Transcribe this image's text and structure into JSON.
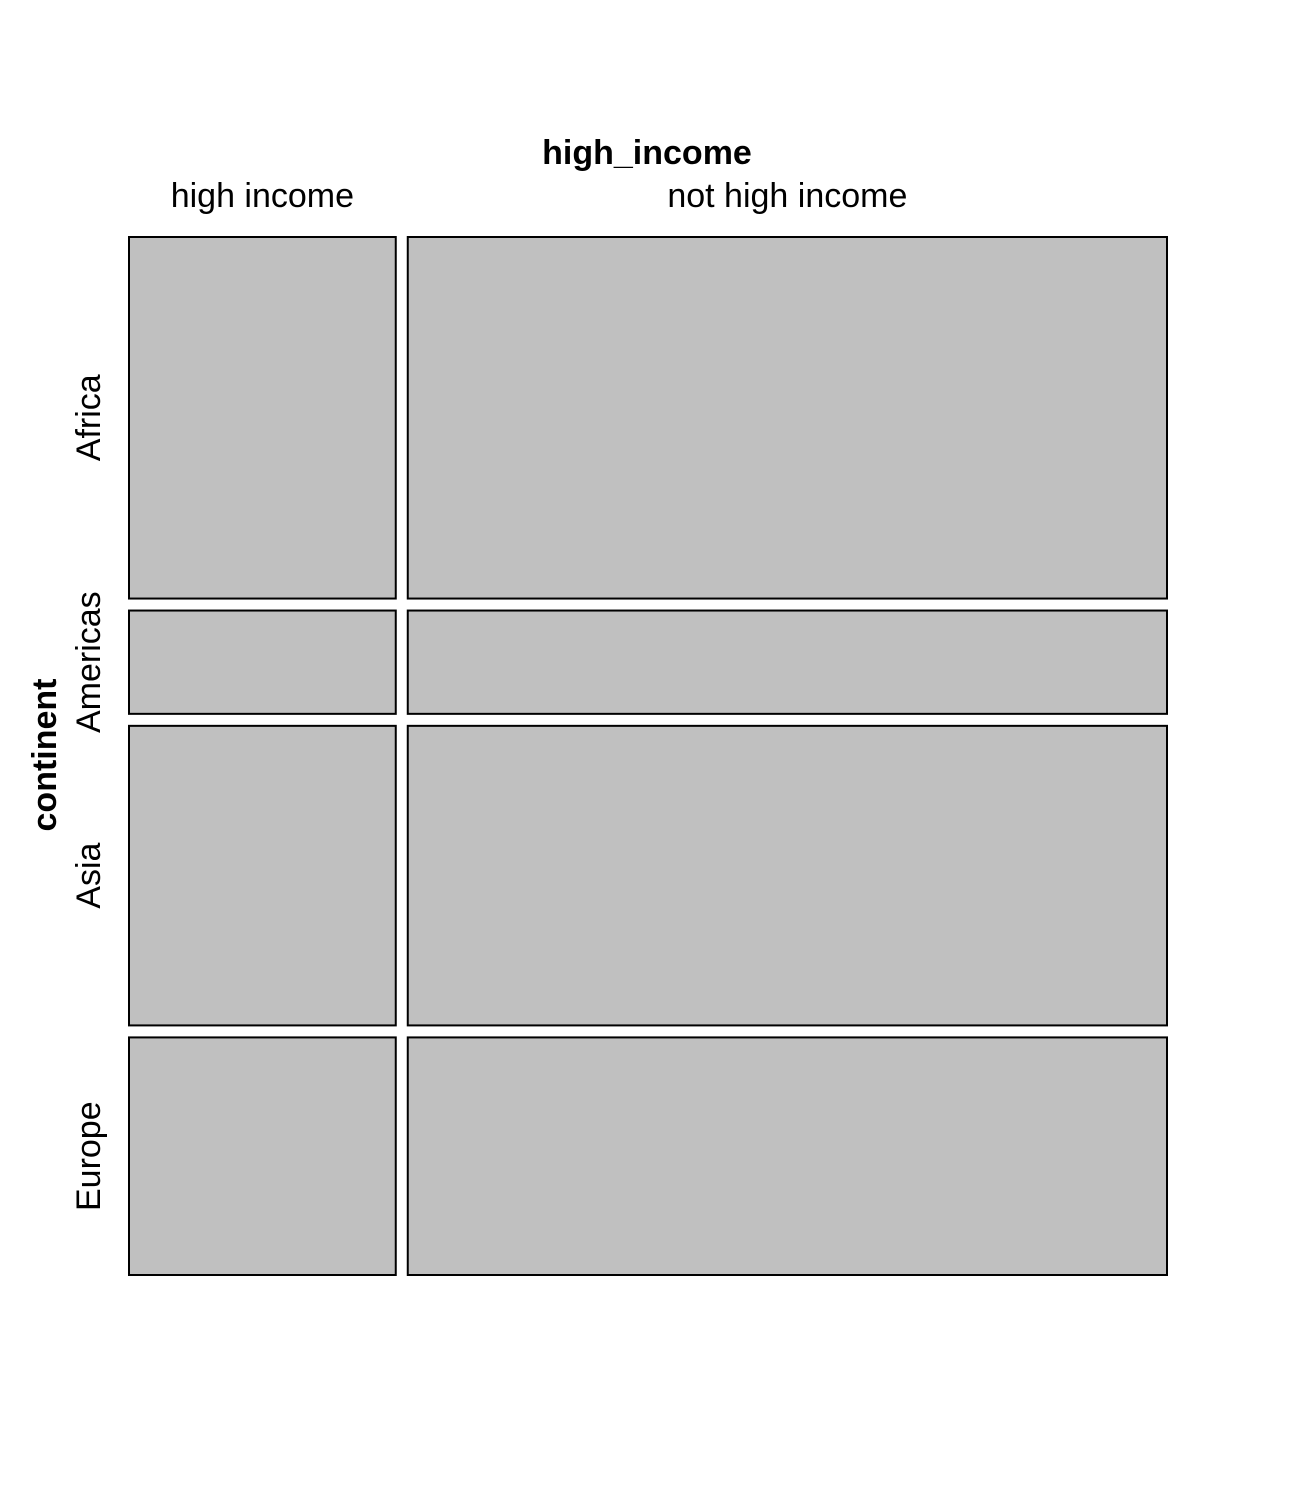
{
  "chart_data": {
    "type": "mosaic",
    "col_variable": "high_income",
    "row_variable": "continent",
    "columns": [
      "high income",
      "not high income"
    ],
    "rows": [
      "Africa",
      "Americas",
      "Asia",
      "Europe"
    ],
    "column_proportions": [
      0.26,
      0.74
    ],
    "row_proportions": [
      0.35,
      0.1,
      0.29,
      0.23
    ],
    "fill_color": "#c0c0c0",
    "stroke_color": "#000000"
  }
}
